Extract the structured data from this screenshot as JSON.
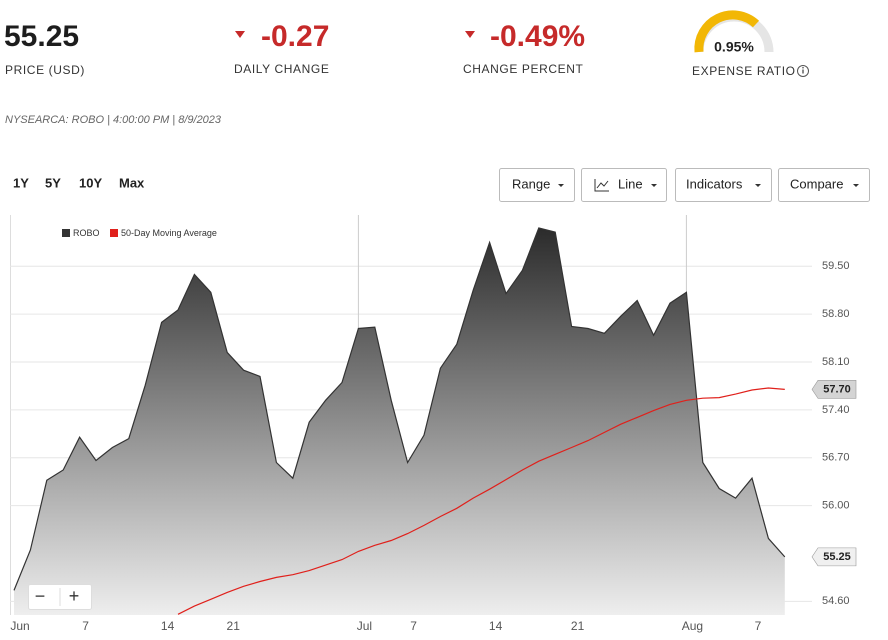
{
  "header": {
    "price": "55.25",
    "price_label": "PRICE (USD)",
    "daily_change": "-0.27",
    "daily_change_label": "DAILY CHANGE",
    "change_percent": "-0.49%",
    "change_percent_label": "CHANGE PERCENT",
    "expense_ratio": "0.95%",
    "expense_ratio_label": "EXPENSE RATIO"
  },
  "meta": "NYSEARCA: ROBO | 4:00:00 PM | 8/9/2023",
  "periods": [
    "1Y",
    "5Y",
    "10Y",
    "Max"
  ],
  "menus": [
    "Range",
    "Line",
    "Indicators",
    "Compare"
  ],
  "zoom": [
    "−",
    "+"
  ],
  "chart_data": {
    "type": "area",
    "categories": [
      "Jun",
      null,
      null,
      null,
      "7",
      null,
      null,
      null,
      null,
      "14",
      null,
      null,
      null,
      "21",
      null,
      null,
      null,
      null,
      null,
      null,
      null,
      "Jul",
      null,
      null,
      "7",
      null,
      null,
      null,
      null,
      "14",
      null,
      null,
      null,
      null,
      "21",
      null,
      null,
      null,
      null,
      null,
      null,
      "Aug",
      null,
      null,
      null,
      "7",
      null,
      null
    ],
    "series": [
      {
        "name": "ROBO",
        "color": "#333333",
        "values": [
          54.76,
          55.35,
          56.37,
          56.52,
          57.0,
          56.66,
          56.85,
          56.98,
          57.76,
          58.68,
          58.86,
          59.38,
          59.12,
          58.24,
          57.98,
          57.89,
          56.63,
          56.4,
          57.22,
          57.54,
          57.8,
          58.59,
          58.61,
          57.54,
          56.63,
          57.03,
          58.01,
          58.36,
          59.15,
          59.85,
          59.1,
          59.44,
          60.06,
          60.0,
          58.62,
          58.59,
          58.52,
          58.77,
          59.0,
          58.49,
          58.96,
          59.12,
          56.63,
          56.25,
          56.11,
          56.4,
          55.52,
          55.25
        ]
      },
      {
        "name": "50-Day Moving Average",
        "color": "#e0201b",
        "values": [
          null,
          null,
          null,
          null,
          null,
          null,
          null,
          null,
          null,
          null,
          54.41,
          54.53,
          54.63,
          54.73,
          54.82,
          54.89,
          54.95,
          54.99,
          55.05,
          55.13,
          55.21,
          55.33,
          55.42,
          55.49,
          55.59,
          55.71,
          55.84,
          55.96,
          56.11,
          56.24,
          56.38,
          56.52,
          56.65,
          56.75,
          56.85,
          56.95,
          57.07,
          57.19,
          57.29,
          57.39,
          57.48,
          57.54,
          57.57,
          57.58,
          57.63,
          57.69,
          57.72,
          57.7
        ],
        "value_labels": [
          null,
          null,
          null,
          null,
          null,
          null,
          null,
          null,
          null,
          null,
          null,
          null,
          null,
          null,
          null,
          null,
          null,
          null,
          null,
          null,
          null,
          null,
          null,
          null,
          null,
          null,
          null,
          null,
          null,
          null,
          null,
          null,
          null,
          null,
          null,
          null,
          null,
          null,
          null,
          null,
          null,
          null,
          null,
          null,
          null,
          null,
          null,
          "57.70"
        ]
      }
    ],
    "ylim": [
      54.4,
      60.25
    ],
    "yticks": [
      {
        "value": 54.6,
        "label": "54.60"
      },
      {
        "value": 56.0,
        "label": "56.00"
      },
      {
        "value": 56.7,
        "label": "56.70"
      },
      {
        "value": 57.4,
        "label": "57.40"
      },
      {
        "value": 58.1,
        "label": "58.10"
      },
      {
        "value": 58.8,
        "label": "58.80"
      },
      {
        "value": 59.5,
        "label": "59.50"
      }
    ],
    "grid": true
  }
}
